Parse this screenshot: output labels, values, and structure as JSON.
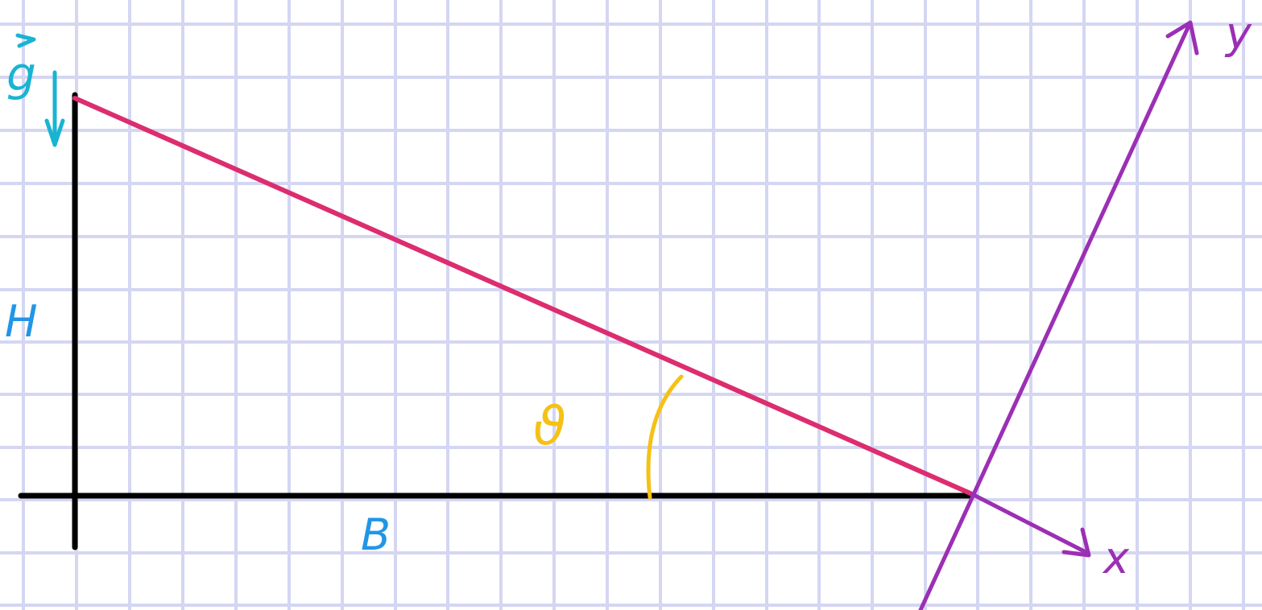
{
  "labels": {
    "gravity": "g",
    "height": "H",
    "base": "B",
    "angle": "ϑ",
    "x_axis": "x",
    "y_axis": "y"
  },
  "colors": {
    "grid": "#d4d6f2",
    "triangle_legs": "#000000",
    "hypotenuse": "#dc2d6f",
    "axes": "#9b2fb5",
    "gravity": "#19b4d2",
    "labels_blue": "#2196e6",
    "angle": "#f5c116"
  },
  "icons": {
    "gravity_vector": "arrow-down-icon",
    "axis_arrowheads": "arrowhead-icon"
  }
}
